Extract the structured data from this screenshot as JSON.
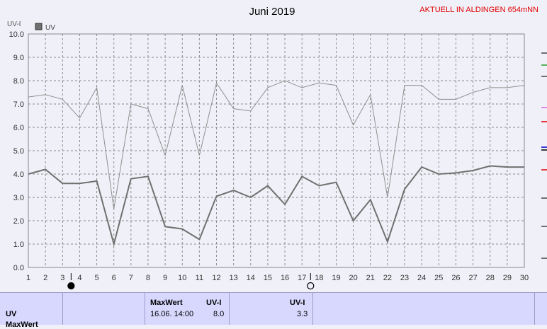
{
  "chart_data": {
    "type": "line",
    "title": "Juni 2019",
    "station": "AKTUELL IN ALDINGEN 654mNN",
    "ylabel": "UV-I",
    "ylim": [
      0,
      10
    ],
    "yticks": [
      "0.0",
      "1.0",
      "2.0",
      "3.0",
      "4.0",
      "5.0",
      "6.0",
      "7.0",
      "8.0",
      "9.0",
      "10.0"
    ],
    "x": [
      1,
      2,
      3,
      4,
      5,
      6,
      7,
      8,
      9,
      10,
      11,
      12,
      13,
      14,
      15,
      16,
      17,
      18,
      19,
      20,
      21,
      22,
      23,
      24,
      25,
      26,
      27,
      28,
      29,
      30
    ],
    "legend": "UV",
    "series": [
      {
        "name": "UV",
        "color": "#707070",
        "values": [
          4.0,
          4.2,
          3.6,
          3.6,
          3.7,
          1.0,
          3.8,
          3.9,
          1.75,
          1.65,
          1.2,
          3.05,
          3.3,
          3.0,
          3.5,
          2.7,
          3.9,
          3.5,
          3.65,
          2.0,
          2.9,
          1.1,
          3.35,
          4.3,
          4.0,
          4.05,
          4.15,
          4.35,
          4.3,
          4.3
        ]
      },
      {
        "color": "#909090",
        "values": [
          7.3,
          7.4,
          7.2,
          6.4,
          7.7,
          2.5,
          7.0,
          6.8,
          4.8,
          7.8,
          4.8,
          7.9,
          6.8,
          6.7,
          7.7,
          8.0,
          7.7,
          7.9,
          7.8,
          6.1,
          7.4,
          3.0,
          7.8,
          7.8,
          7.2,
          7.2,
          7.5,
          7.7,
          7.7,
          7.8
        ]
      }
    ],
    "moon_markers": [
      {
        "x": 3.5,
        "phase": "new-moon"
      },
      {
        "x": 17.5,
        "phase": "full-moon"
      }
    ]
  },
  "table": {
    "row1_label": "UV",
    "row2_label": "MaxWert",
    "max_header": "MaxWert",
    "uvi_header": "UV-I",
    "max_datetime": "16.06.  14:00",
    "max_value": "8.0",
    "avg_header": "UV-I",
    "avg_value": "3.3"
  }
}
